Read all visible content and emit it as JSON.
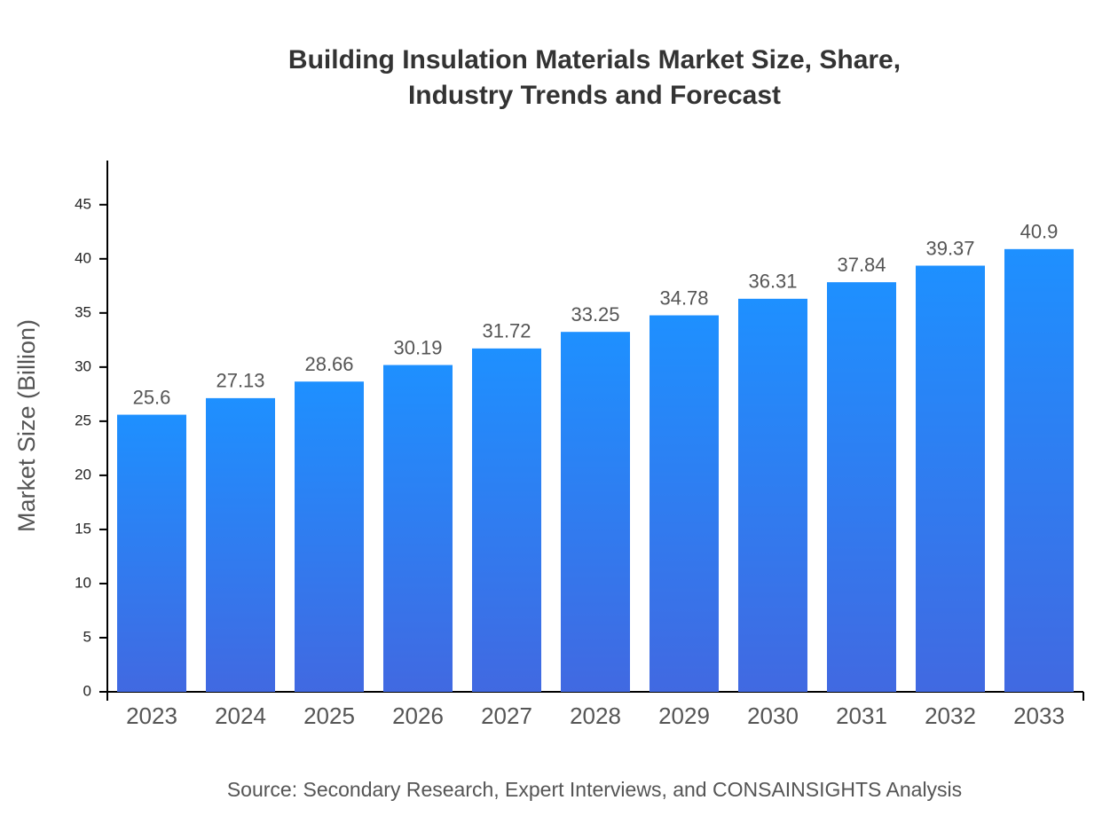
{
  "chart_data": {
    "type": "bar",
    "title": "Building Insulation Materials Market Size, Share,\nIndustry Trends and Forecast",
    "y_label": "Market Size (Billion)",
    "source": "Source: Secondary Research, Expert Interviews, and CONSAINSIGHTS Analysis",
    "categories": [
      "2023",
      "2024",
      "2025",
      "2026",
      "2027",
      "2028",
      "2029",
      "2030",
      "2031",
      "2032",
      "2033"
    ],
    "values": [
      25.6,
      27.13,
      28.66,
      30.19,
      31.72,
      33.25,
      34.78,
      36.31,
      37.84,
      39.37,
      40.9
    ],
    "gradient": [
      "#1e90ff",
      "#4169e1"
    ],
    "ylim": [
      0,
      49.08
    ],
    "yticks": [
      0,
      5,
      10,
      15,
      20,
      25,
      30,
      35,
      40,
      45
    ],
    "grid": false
  }
}
